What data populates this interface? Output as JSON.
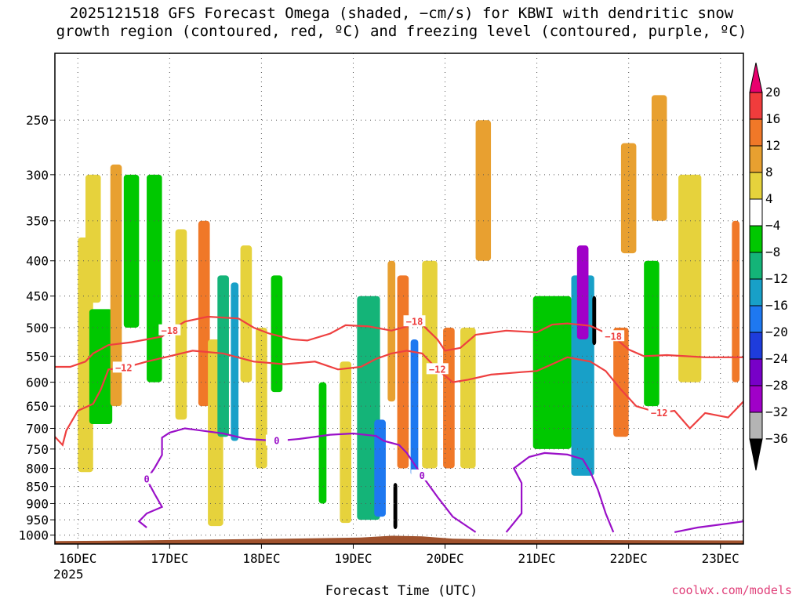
{
  "title_line1": "2025121518 GFS Forecast Omega (shaded, −cm/s) for KBWI with dendritic snow",
  "title_line2": "growth region (contoured, red, ºC) and freezing level (contoured, purple, ºC)",
  "credit": "coolwx.com/models",
  "chart_data": {
    "type": "heatmap",
    "title": "2025121518 GFS Forecast Omega (shaded, −cm/s) for KBWI with dendritic snow growth region (contoured, red, ºC) and freezing level (contoured, purple, ºC)",
    "xlabel": "Forecast Time (UTC)",
    "ylabel": "",
    "x_ticks": [
      {
        "label": "16DEC",
        "sub": "2025",
        "hours": 6
      },
      {
        "label": "17DEC",
        "sub": "",
        "hours": 30
      },
      {
        "label": "18DEC",
        "sub": "",
        "hours": 54
      },
      {
        "label": "19DEC",
        "sub": "",
        "hours": 78
      },
      {
        "label": "20DEC",
        "sub": "",
        "hours": 102
      },
      {
        "label": "21DEC",
        "sub": "",
        "hours": 126
      },
      {
        "label": "22DEC",
        "sub": "",
        "hours": 150
      },
      {
        "label": "23DEC",
        "sub": "",
        "hours": 174
      }
    ],
    "x_range_hours": [
      0,
      180
    ],
    "y_ticks": [
      "250",
      "300",
      "350",
      "400",
      "450",
      "500",
      "550",
      "600",
      "650",
      "700",
      "750",
      "800",
      "850",
      "900",
      "950",
      "1000"
    ],
    "y_range_hPa": [
      200,
      1030
    ],
    "y_scale": "log",
    "grid": "dotted",
    "colorbar": {
      "labels": [
        "20",
        "16",
        "12",
        "8",
        "4",
        "−4",
        "−8",
        "−12",
        "−16",
        "−20",
        "−24",
        "−28",
        "−32",
        "−36"
      ],
      "colors": [
        "#e8006e",
        "#f03c3c",
        "#f07828",
        "#e8a030",
        "#e6d23c",
        "#ffffff",
        "#00c800",
        "#14b478",
        "#18a0c8",
        "#1e78f0",
        "#1e3cdc",
        "#7800c8",
        "#a000c8",
        "#b4b4b4",
        "#000000"
      ]
    },
    "dgz_contours": [
      {
        "label": "−18",
        "points": [
          [
            0,
            570
          ],
          [
            4,
            570
          ],
          [
            8,
            560
          ],
          [
            10,
            545
          ],
          [
            14,
            530
          ],
          [
            20,
            525
          ],
          [
            28,
            515
          ],
          [
            30,
            505
          ],
          [
            34,
            490
          ],
          [
            40,
            482
          ],
          [
            48,
            485
          ],
          [
            52,
            500
          ],
          [
            56,
            510
          ],
          [
            62,
            520
          ],
          [
            66,
            522
          ],
          [
            72,
            510
          ],
          [
            76,
            496
          ],
          [
            82,
            498
          ],
          [
            88,
            505
          ],
          [
            92,
            498
          ],
          [
            94,
            490
          ],
          [
            96,
            495
          ],
          [
            100,
            520
          ],
          [
            102,
            540
          ],
          [
            106,
            535
          ],
          [
            110,
            512
          ],
          [
            118,
            505
          ],
          [
            126,
            508
          ],
          [
            130,
            495
          ],
          [
            134,
            493
          ],
          [
            140,
            497
          ],
          [
            146,
            515
          ],
          [
            150,
            538
          ],
          [
            154,
            550
          ],
          [
            160,
            548
          ],
          [
            170,
            552
          ],
          [
            180,
            552
          ]
        ]
      },
      {
        "label": "−12",
        "points": [
          [
            0,
            720
          ],
          [
            2,
            740
          ],
          [
            3,
            705
          ],
          [
            6,
            660
          ],
          [
            10,
            645
          ],
          [
            12,
            615
          ],
          [
            14,
            575
          ],
          [
            18,
            572
          ],
          [
            24,
            560
          ],
          [
            30,
            550
          ],
          [
            36,
            540
          ],
          [
            44,
            545
          ],
          [
            52,
            560
          ],
          [
            60,
            565
          ],
          [
            68,
            560
          ],
          [
            74,
            575
          ],
          [
            80,
            570
          ],
          [
            84,
            555
          ],
          [
            88,
            545
          ],
          [
            92,
            540
          ],
          [
            96,
            545
          ],
          [
            100,
            575
          ],
          [
            104,
            600
          ],
          [
            108,
            595
          ],
          [
            114,
            585
          ],
          [
            122,
            580
          ],
          [
            126,
            578
          ],
          [
            130,
            565
          ],
          [
            134,
            552
          ],
          [
            140,
            560
          ],
          [
            144,
            578
          ],
          [
            148,
            615
          ],
          [
            152,
            650
          ],
          [
            158,
            665
          ],
          [
            162,
            660
          ],
          [
            166,
            700
          ],
          [
            170,
            665
          ],
          [
            176,
            675
          ],
          [
            180,
            640
          ]
        ]
      }
    ],
    "freezing_contour": {
      "label": "0",
      "points": [
        [
          24,
          975
        ],
        [
          22,
          955
        ],
        [
          24,
          930
        ],
        [
          28,
          910
        ],
        [
          26,
          870
        ],
        [
          24,
          830
        ],
        [
          26,
          800
        ],
        [
          28,
          765
        ],
        [
          28,
          722
        ],
        [
          30,
          710
        ],
        [
          34,
          700
        ],
        [
          44,
          712
        ],
        [
          50,
          725
        ],
        [
          58,
          730
        ],
        [
          64,
          725
        ],
        [
          72,
          715
        ],
        [
          78,
          712
        ],
        [
          84,
          718
        ],
        [
          86,
          730
        ],
        [
          90,
          740
        ],
        [
          92,
          760
        ],
        [
          96,
          820
        ],
        [
          100,
          880
        ],
        [
          104,
          940
        ],
        [
          110,
          990
        ]
      ]
    },
    "freezing_contour_2": [
      [
        118,
        990
      ],
      [
        120,
        960
      ],
      [
        122,
        930
      ],
      [
        122,
        880
      ],
      [
        122,
        840
      ],
      [
        120,
        800
      ],
      [
        124,
        770
      ],
      [
        128,
        760
      ],
      [
        134,
        764
      ],
      [
        138,
        776
      ],
      [
        140,
        810
      ],
      [
        142,
        860
      ],
      [
        144,
        930
      ],
      [
        146,
        990
      ]
    ],
    "freezing_contour_3": [
      [
        162,
        990
      ],
      [
        168,
        975
      ],
      [
        176,
        962
      ],
      [
        180,
        955
      ]
    ],
    "omega_blobs": [
      {
        "x": 8,
        "y": 370,
        "w": 4,
        "h": 440,
        "v": 6
      },
      {
        "x": 10,
        "y": 300,
        "w": 4,
        "h": 160,
        "v": 5
      },
      {
        "x": 12,
        "y": 470,
        "w": 6,
        "h": 220,
        "v": -6
      },
      {
        "x": 16,
        "y": 290,
        "w": 3,
        "h": 360,
        "v": 10
      },
      {
        "x": 20,
        "y": 300,
        "w": 4,
        "h": 200,
        "v": -6
      },
      {
        "x": 26,
        "y": 300,
        "w": 4,
        "h": 300,
        "v": -6
      },
      {
        "x": 33,
        "y": 360,
        "w": 3,
        "h": 320,
        "v": 6
      },
      {
        "x": 39,
        "y": 350,
        "w": 3,
        "h": 300,
        "v": 14
      },
      {
        "x": 42,
        "y": 520,
        "w": 4,
        "h": 450,
        "v": 5
      },
      {
        "x": 44,
        "y": 420,
        "w": 3,
        "h": 300,
        "v": -10
      },
      {
        "x": 47,
        "y": 430,
        "w": 2,
        "h": 300,
        "v": -14
      },
      {
        "x": 50,
        "y": 380,
        "w": 3,
        "h": 220,
        "v": 5
      },
      {
        "x": 54,
        "y": 500,
        "w": 3,
        "h": 300,
        "v": 6
      },
      {
        "x": 58,
        "y": 420,
        "w": 3,
        "h": 200,
        "v": -6
      },
      {
        "x": 70,
        "y": 600,
        "w": 2,
        "h": 300,
        "v": -5
      },
      {
        "x": 76,
        "y": 560,
        "w": 3,
        "h": 400,
        "v": 5
      },
      {
        "x": 82,
        "y": 450,
        "w": 6,
        "h": 500,
        "v": -10
      },
      {
        "x": 85,
        "y": 680,
        "w": 3,
        "h": 260,
        "v": -16
      },
      {
        "x": 88,
        "y": 400,
        "w": 2,
        "h": 240,
        "v": 8
      },
      {
        "x": 91,
        "y": 420,
        "w": 3,
        "h": 380,
        "v": 12
      },
      {
        "x": 89,
        "y": 840,
        "w": 1,
        "h": 140,
        "v": -36
      },
      {
        "x": 94,
        "y": 520,
        "w": 2,
        "h": 300,
        "v": -16
      },
      {
        "x": 98,
        "y": 400,
        "w": 4,
        "h": 400,
        "v": 6
      },
      {
        "x": 103,
        "y": 500,
        "w": 3,
        "h": 300,
        "v": 14
      },
      {
        "x": 108,
        "y": 500,
        "w": 4,
        "h": 300,
        "v": 5
      },
      {
        "x": 112,
        "y": 250,
        "w": 4,
        "h": 150,
        "v": 8
      },
      {
        "x": 130,
        "y": 450,
        "w": 10,
        "h": 300,
        "v": -6
      },
      {
        "x": 138,
        "y": 420,
        "w": 6,
        "h": 400,
        "v": -14
      },
      {
        "x": 138,
        "y": 380,
        "w": 3,
        "h": 140,
        "v": -28
      },
      {
        "x": 141,
        "y": 450,
        "w": 1,
        "h": 80,
        "v": -36
      },
      {
        "x": 148,
        "y": 500,
        "w": 4,
        "h": 220,
        "v": 12
      },
      {
        "x": 150,
        "y": 270,
        "w": 4,
        "h": 120,
        "v": 10
      },
      {
        "x": 156,
        "y": 400,
        "w": 4,
        "h": 250,
        "v": -6
      },
      {
        "x": 158,
        "y": 230,
        "w": 4,
        "h": 120,
        "v": 8
      },
      {
        "x": 166,
        "y": 300,
        "w": 6,
        "h": 300,
        "v": 5
      },
      {
        "x": 178,
        "y": 350,
        "w": 2,
        "h": 250,
        "v": 12
      }
    ]
  }
}
